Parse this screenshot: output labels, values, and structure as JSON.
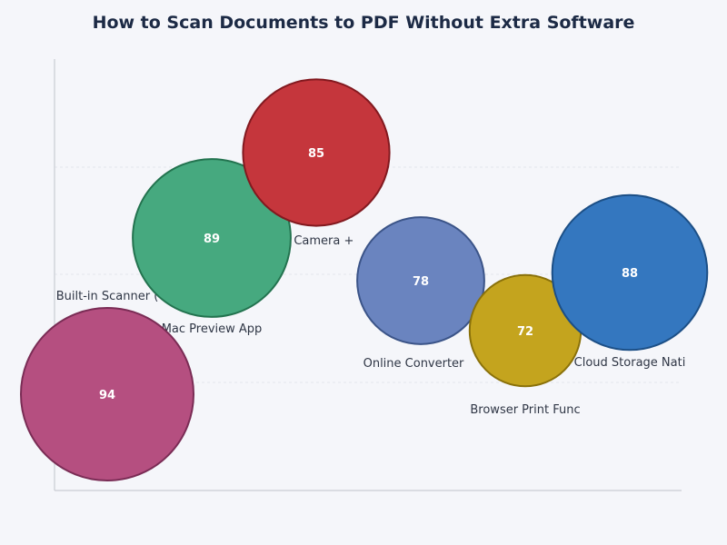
{
  "title": "How to Scan Documents to PDF Without Extra Software",
  "chart_data": {
    "type": "scatter",
    "subtype": "bubble",
    "title": "How to Scan Documents to PDF Without Extra Software",
    "xlabel": "",
    "ylabel": "",
    "grid": true,
    "legend": "none",
    "points": [
      {
        "label": "Built-in Scanner (",
        "value": 94,
        "color": "#b54f80",
        "stroke": "#7a2c55"
      },
      {
        "label": "Mac Preview App",
        "value": 89,
        "color": "#46a97f",
        "stroke": "#23734f"
      },
      {
        "label": "Mobile Camera +",
        "value": 85,
        "color": "#c5363c",
        "stroke": "#82191f"
      },
      {
        "label": "Online Converter",
        "value": 78,
        "color": "#6a84bf",
        "stroke": "#3b5488"
      },
      {
        "label": "Browser Print Func",
        "value": 72,
        "color": "#c4a41e",
        "stroke": "#8a710a"
      },
      {
        "label": "Cloud Storage Nati",
        "value": 88,
        "color": "#3477bf",
        "stroke": "#1c4f86"
      }
    ]
  }
}
